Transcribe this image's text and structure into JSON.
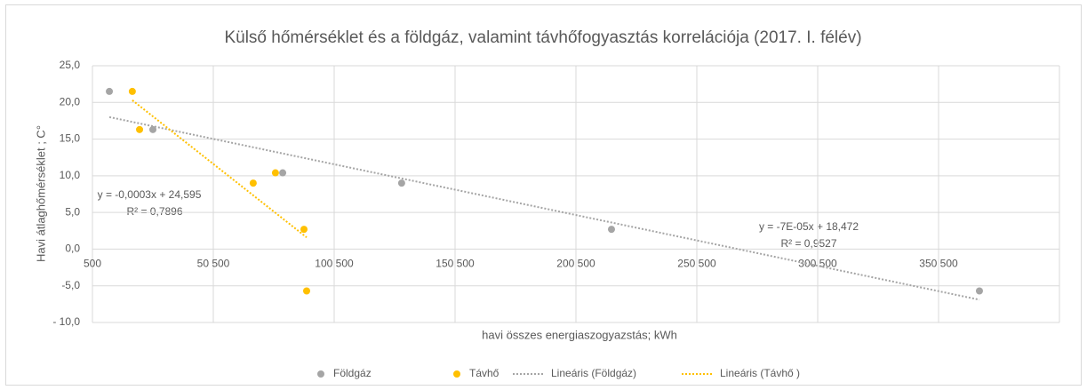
{
  "chart_data": {
    "type": "scatter",
    "title": "Külső hőmérséklet  és a földgáz, valamint távhőfogyasztás korrelációja (2017. I. félév)",
    "x_label": "havi összes energiaszogyazstás; kWh",
    "y_label": "Havi átlaghőmérséklet ; C°",
    "xlim": [
      500,
      400500
    ],
    "ylim": [
      -10,
      25
    ],
    "xticks": [
      500,
      {
        "value": 50500,
        "label": "50 500"
      },
      {
        "value": 100500,
        "label": "100 500"
      },
      {
        "value": 150500,
        "label": "150 500"
      },
      {
        "value": 200500,
        "label": "200 500"
      },
      {
        "value": 250500,
        "label": "250 500"
      },
      {
        "value": 300500,
        "label": "300 500"
      },
      {
        "value": 350500,
        "label": "350 500"
      }
    ],
    "yticks": [
      {
        "value": -10,
        "label": "- 10,0"
      },
      {
        "value": -5,
        "label": "-5,0"
      },
      {
        "value": 0,
        "label": "0,0"
      },
      {
        "value": 5,
        "label": "5,0"
      },
      {
        "value": 10,
        "label": "10,0"
      },
      {
        "value": 15,
        "label": "15,0"
      },
      {
        "value": 20,
        "label": "20,0"
      },
      {
        "value": 25,
        "label": "25,0"
      }
    ],
    "grid": true,
    "legend": "bottom",
    "series": [
      {
        "name": "Földgáz",
        "color": "#a5a5a5",
        "x": [
          7500,
          25500,
          79200,
          128400,
          215200,
          367400
        ],
        "values": [
          21.5,
          16.3,
          10.4,
          9.0,
          2.7,
          -5.7
        ]
      },
      {
        "name": "Távhő",
        "color": "#ffc000",
        "x": [
          17000,
          20000,
          67000,
          76200,
          88000,
          89100
        ],
        "values": [
          21.5,
          16.3,
          9.0,
          10.4,
          2.7,
          -5.7
        ]
      },
      {
        "name": "Lineáris (Földgáz)",
        "color": "#a5a5a5",
        "style": "trendline",
        "x": [
          7500,
          367400
        ],
        "values": [
          18.0,
          -6.9
        ]
      },
      {
        "name": "Lineáris (Távhő )",
        "color": "#ffc000",
        "style": "trendline",
        "x": [
          17000,
          89100
        ],
        "values": [
          20.3,
          1.6
        ]
      }
    ],
    "annotations": [
      "y = -0,0003x + 24,595",
      "R² = 0,7896",
      "y = -7E-05x + 18,472",
      "R² = 0,9527"
    ]
  }
}
